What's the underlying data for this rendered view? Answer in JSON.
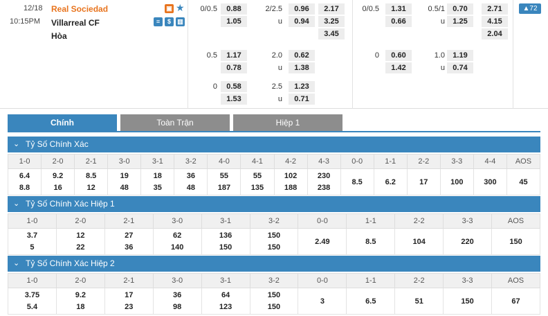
{
  "match": {
    "date": "12/18",
    "time": "10:15PM",
    "home": "Real Sociedad",
    "away": "Villarreal CF",
    "draw": "Hòa",
    "badge_count": "▲72"
  },
  "odds_ft": {
    "r1": {
      "hdp": "0/0.5",
      "h1": "0.88",
      "h2": "1.05",
      "ou": "2/2.5",
      "o1": "0.96",
      "u_lbl": "u",
      "o2": "0.94",
      "x1": "2.17",
      "x2": "3.25",
      "x3": "3.45"
    },
    "r2": {
      "hdp": "0.5",
      "h1": "1.17",
      "h2": "0.78",
      "ou": "2.0",
      "o1": "0.62",
      "u_lbl": "u",
      "o2": "1.38"
    },
    "r3": {
      "hdp": "0",
      "h1": "0.58",
      "h2": "1.53",
      "ou": "2.5",
      "o1": "1.23",
      "u_lbl": "u",
      "o2": "0.71"
    }
  },
  "odds_h1": {
    "r1": {
      "hdp": "0/0.5",
      "h1": "1.31",
      "h2": "0.66",
      "ou": "0.5/1",
      "o1": "0.70",
      "u_lbl": "u",
      "o2": "1.25",
      "x1": "2.71",
      "x2": "4.15",
      "x3": "2.04"
    },
    "r2": {
      "hdp": "0",
      "h1": "0.60",
      "h2": "1.42",
      "ou": "1.0",
      "o1": "1.19",
      "u_lbl": "u",
      "o2": "0.74"
    }
  },
  "tabs": [
    "Chính",
    "Toàn Trận",
    "Hiệp 1"
  ],
  "sections": [
    {
      "title": "Tỷ Số Chính Xác",
      "headers": [
        "1-0",
        "2-0",
        "2-1",
        "3-0",
        "3-1",
        "3-2",
        "4-0",
        "4-1",
        "4-2",
        "4-3",
        "0-0",
        "1-1",
        "2-2",
        "3-3",
        "4-4",
        "AOS"
      ],
      "top": [
        "6.4",
        "9.2",
        "8.5",
        "19",
        "18",
        "36",
        "55",
        "55",
        "102",
        "230"
      ],
      "bottom": [
        "8.8",
        "16",
        "12",
        "48",
        "35",
        "48",
        "187",
        "135",
        "188",
        "238"
      ],
      "single": [
        "8.5",
        "6.2",
        "17",
        "100",
        "300",
        "45"
      ]
    },
    {
      "title": "Tỷ Số Chính Xác Hiệp 1",
      "headers": [
        "1-0",
        "2-0",
        "2-1",
        "3-0",
        "3-1",
        "3-2",
        "0-0",
        "1-1",
        "2-2",
        "3-3",
        "AOS"
      ],
      "top": [
        "3.7",
        "12",
        "27",
        "62",
        "136",
        "150"
      ],
      "bottom": [
        "5",
        "22",
        "36",
        "140",
        "150",
        "150"
      ],
      "single": [
        "2.49",
        "8.5",
        "104",
        "220",
        "150"
      ]
    },
    {
      "title": "Tỷ Số Chính Xác Hiệp 2",
      "headers": [
        "1-0",
        "2-0",
        "2-1",
        "3-0",
        "3-1",
        "3-2",
        "0-0",
        "1-1",
        "2-2",
        "3-3",
        "AOS"
      ],
      "top": [
        "3.75",
        "9.2",
        "17",
        "36",
        "64",
        "150"
      ],
      "bottom": [
        "5.4",
        "18",
        "23",
        "98",
        "123",
        "150"
      ],
      "single": [
        "3",
        "6.5",
        "51",
        "150",
        "67"
      ]
    }
  ],
  "colors": {
    "accent": "#3a86bd",
    "home": "#e8741e",
    "tab_off": "#8d8d8d"
  }
}
